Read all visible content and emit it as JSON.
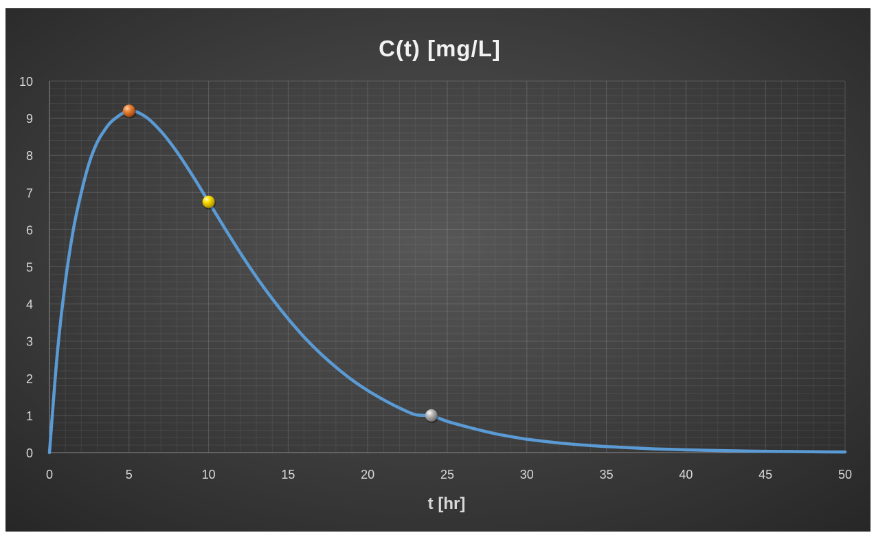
{
  "chart_data": {
    "type": "line",
    "title": "C(t) [mg/L]",
    "xlabel": "t [hr]",
    "ylabel": "",
    "xlim": [
      0,
      50
    ],
    "ylim": [
      0,
      10
    ],
    "x_ticks": [
      0,
      5,
      10,
      15,
      20,
      25,
      30,
      35,
      40,
      45,
      50
    ],
    "y_ticks": [
      0,
      1,
      2,
      3,
      4,
      5,
      6,
      7,
      8,
      9,
      10
    ],
    "grid": true,
    "legend": "none",
    "series": [
      {
        "x": [
          0,
          0.5,
          1,
          1.5,
          2,
          2.5,
          3,
          3.5,
          4,
          5,
          6,
          7,
          8,
          9,
          10,
          11,
          12,
          13,
          14,
          15,
          16,
          17,
          18,
          19,
          20,
          21,
          22,
          23,
          24,
          25,
          26,
          27,
          28,
          29,
          30,
          32,
          34,
          36,
          38,
          40,
          42,
          44,
          46,
          48,
          50
        ],
        "y": [
          0,
          2.7,
          4.6,
          6.0,
          7.0,
          7.8,
          8.35,
          8.7,
          8.95,
          9.2,
          9.05,
          8.65,
          8.1,
          7.45,
          6.75,
          6.05,
          5.37,
          4.73,
          4.14,
          3.6,
          3.11,
          2.68,
          2.3,
          1.96,
          1.67,
          1.42,
          1.2,
          1.02,
          0.99,
          0.84,
          0.72,
          0.61,
          0.51,
          0.43,
          0.36,
          0.26,
          0.19,
          0.14,
          0.1,
          0.075,
          0.055,
          0.04,
          0.03,
          0.022,
          0.016
        ],
        "color": "#5b9bd5"
      }
    ],
    "highlight_points": [
      {
        "x": 5,
        "y": 9.2,
        "color": "#ed7d31"
      },
      {
        "x": 10,
        "y": 6.75,
        "color": "#ffd700"
      },
      {
        "x": 24,
        "y": 1.0,
        "color": "#a5a5a5"
      }
    ]
  }
}
